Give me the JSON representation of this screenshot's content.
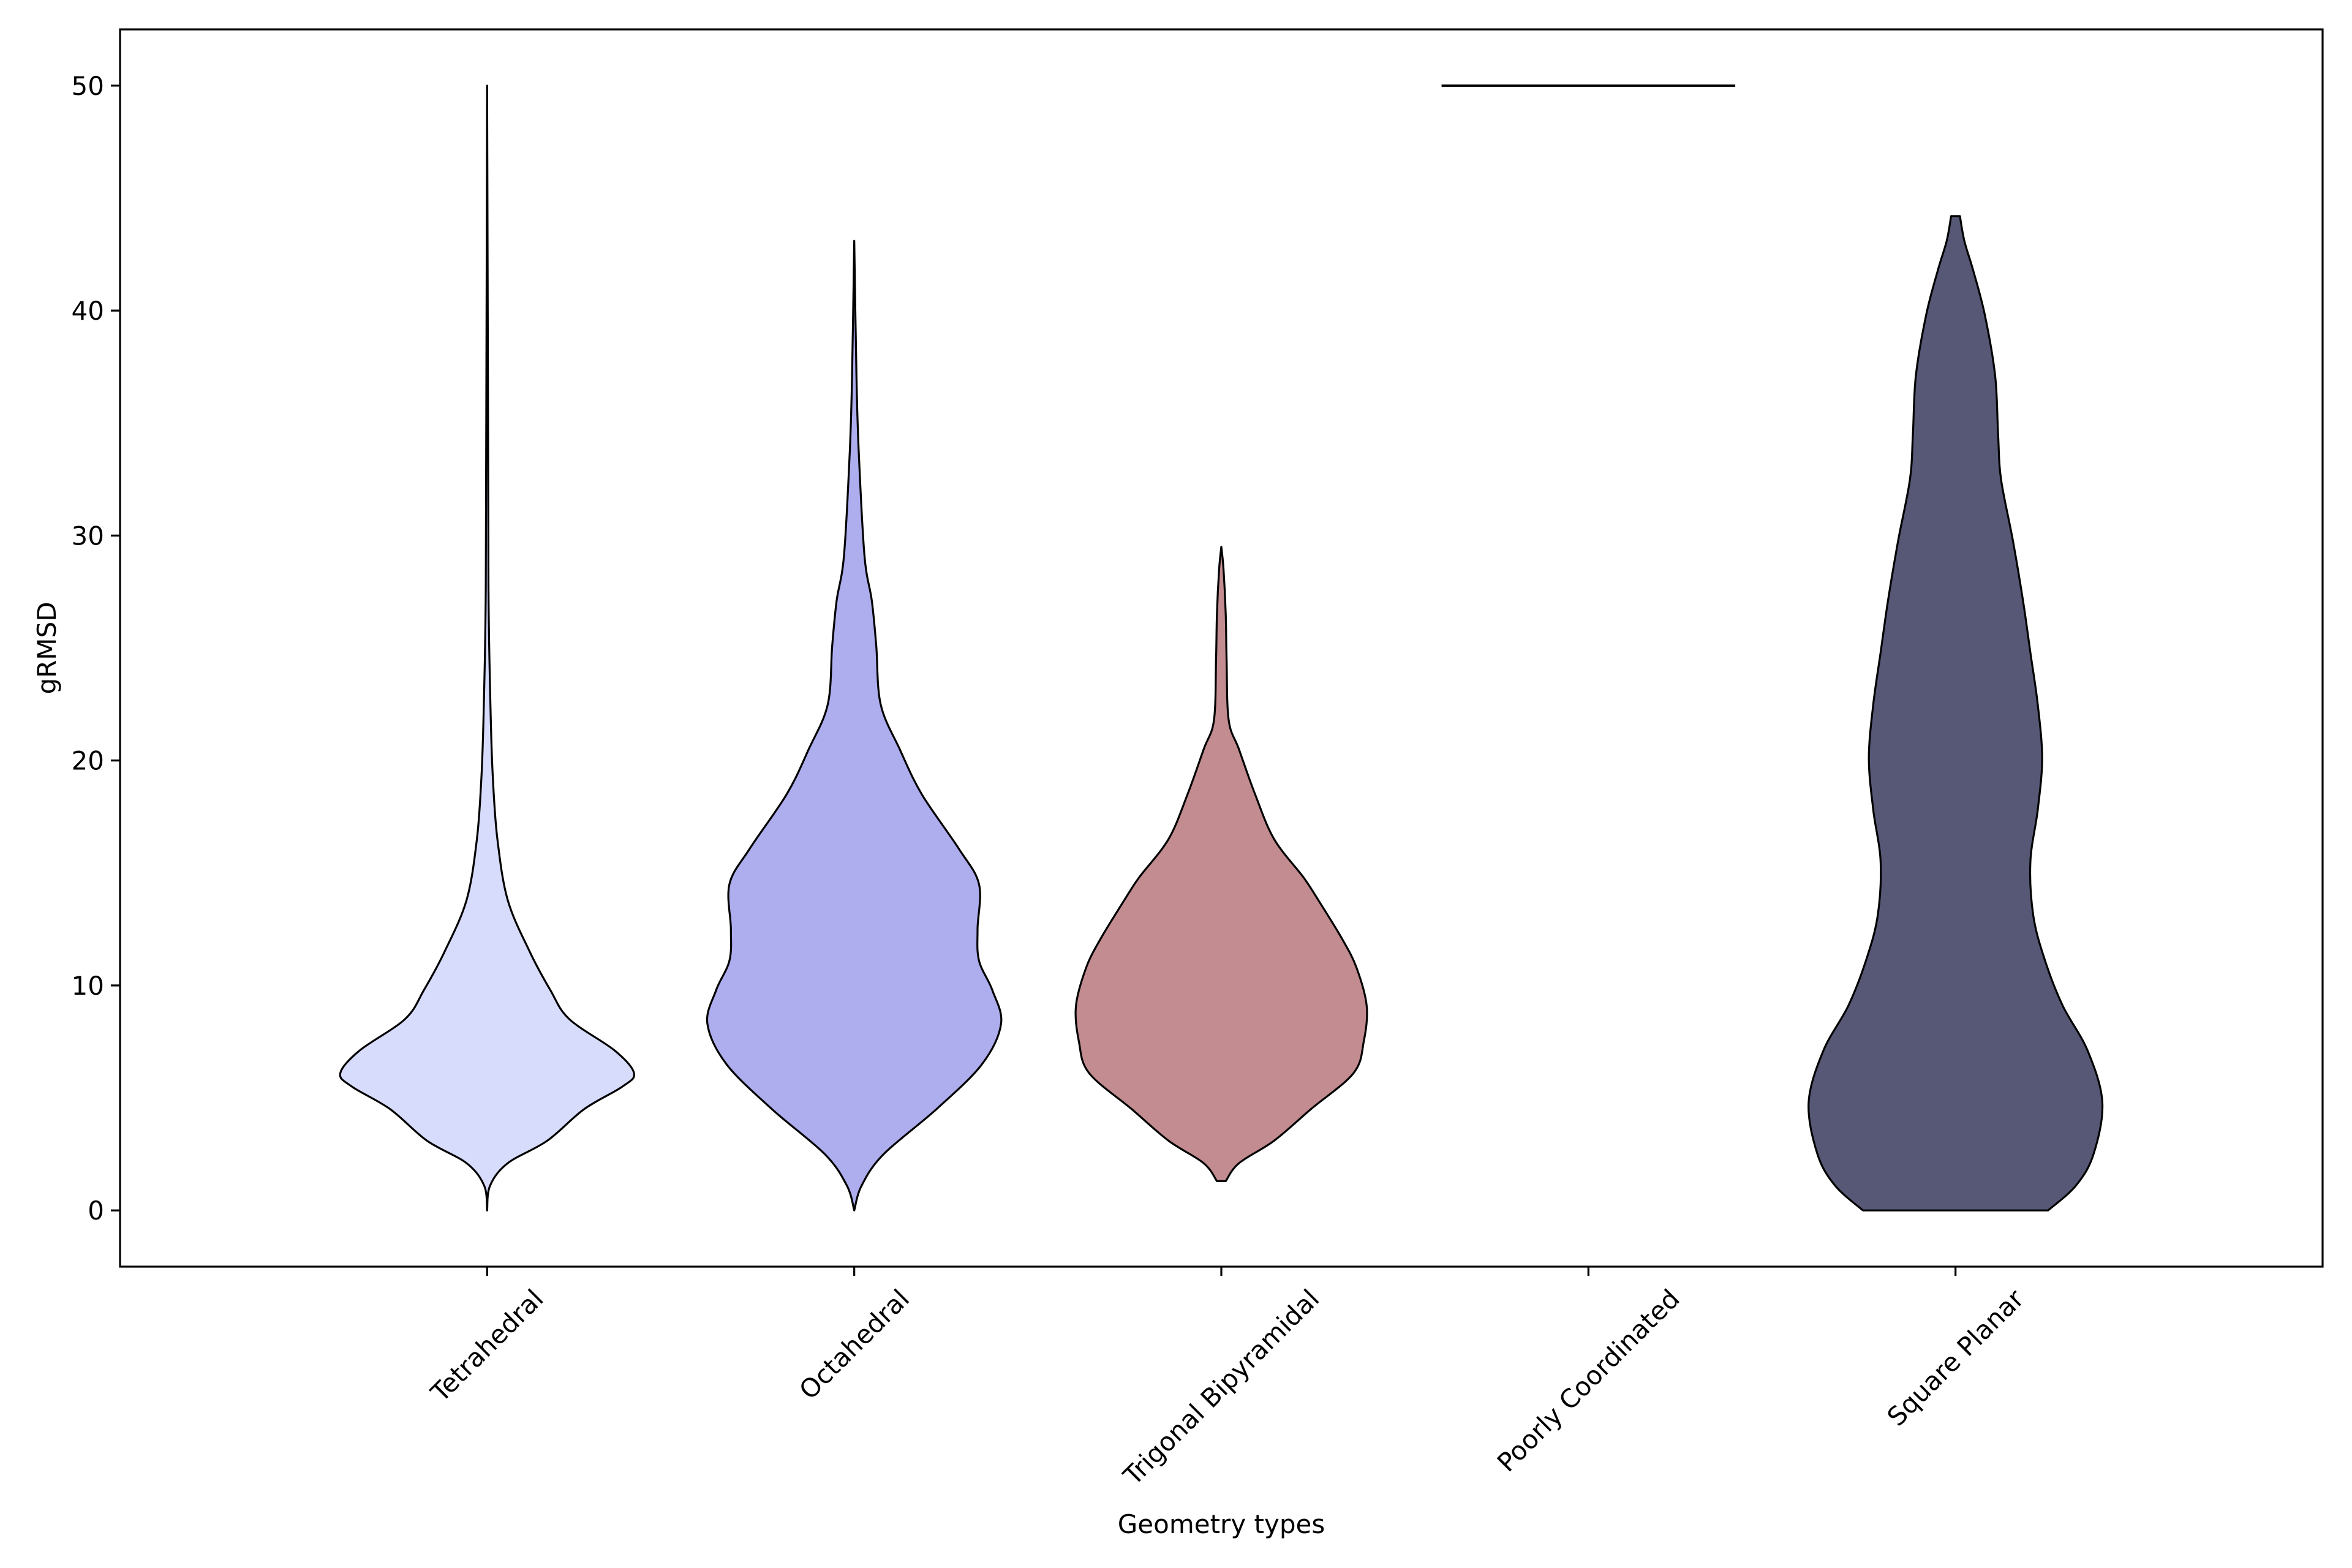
{
  "chart_data": {
    "type": "violin",
    "title": "",
    "xlabel": "Geometry types",
    "ylabel": "gRMSD",
    "ylim": [
      -2.5,
      52.5
    ],
    "xlim": [
      0,
      6
    ],
    "yticks": [
      0,
      10,
      20,
      30,
      40,
      50
    ],
    "ytick_labels": [
      "0",
      "10",
      "20",
      "30",
      "40",
      "50"
    ],
    "grid": false,
    "legend": "none",
    "categories": [
      "Tetrahedral",
      "Octahedral",
      "Trigonal Bipyramidal",
      "Poorly Coordinated",
      "Square Planar"
    ],
    "xtick_rotation_deg": 45,
    "violins": [
      {
        "name": "Tetrahedral",
        "position": 1,
        "color": "#d8dcfc",
        "min": 0,
        "max": 50,
        "density_profile": [
          [
            0,
            0
          ],
          [
            1.1,
            0.02
          ],
          [
            2.1,
            0.14
          ],
          [
            3.1,
            0.41
          ],
          [
            4.5,
            0.66
          ],
          [
            5.5,
            0.92
          ],
          [
            6.1,
            1.0
          ],
          [
            7.1,
            0.87
          ],
          [
            8.5,
            0.56
          ],
          [
            9.8,
            0.43
          ],
          [
            11.5,
            0.29
          ],
          [
            13.8,
            0.14
          ],
          [
            16.5,
            0.07
          ],
          [
            19.1,
            0.04
          ],
          [
            21.8,
            0.025
          ],
          [
            27,
            0.01
          ],
          [
            35,
            0.006
          ],
          [
            50,
            0
          ]
        ]
      },
      {
        "name": "Octahedral",
        "position": 2,
        "color": "#aeadee",
        "min": 0,
        "max": 43.1,
        "density_profile": [
          [
            0,
            0
          ],
          [
            1.1,
            0.05
          ],
          [
            2.5,
            0.2
          ],
          [
            4.5,
            0.56
          ],
          [
            6.5,
            0.87
          ],
          [
            8.3,
            1.0
          ],
          [
            9.8,
            0.94
          ],
          [
            11.1,
            0.85
          ],
          [
            12.5,
            0.84
          ],
          [
            14.5,
            0.85
          ],
          [
            16.1,
            0.71
          ],
          [
            18.5,
            0.46
          ],
          [
            20.5,
            0.31
          ],
          [
            22.5,
            0.18
          ],
          [
            25.1,
            0.15
          ],
          [
            27.1,
            0.12
          ],
          [
            29.1,
            0.07
          ],
          [
            33.8,
            0.03
          ],
          [
            37.1,
            0.015
          ],
          [
            43.1,
            0
          ]
        ]
      },
      {
        "name": "Trigonal Bipyramidal",
        "position": 3,
        "color": "#c28c91",
        "min": 1.3,
        "max": 29.5,
        "density_profile": [
          [
            1.3,
            0.03
          ],
          [
            2.1,
            0.12
          ],
          [
            3.1,
            0.36
          ],
          [
            4.5,
            0.61
          ],
          [
            6.1,
            0.9
          ],
          [
            7.5,
            0.97
          ],
          [
            9.1,
            0.99
          ],
          [
            10.8,
            0.92
          ],
          [
            12.1,
            0.82
          ],
          [
            13.8,
            0.66
          ],
          [
            14.8,
            0.56
          ],
          [
            16.5,
            0.36
          ],
          [
            18.5,
            0.23
          ],
          [
            20.5,
            0.12
          ],
          [
            21.8,
            0.05
          ],
          [
            24.5,
            0.036
          ],
          [
            26.5,
            0.03
          ],
          [
            28.5,
            0.015
          ],
          [
            29.5,
            0
          ]
        ]
      },
      {
        "name": "Poorly Coordinated",
        "position": 4,
        "color": "#000000",
        "min": 50,
        "max": 50,
        "density_profile": [
          [
            50,
            1.0
          ]
        ]
      },
      {
        "name": "Square Planar",
        "position": 5,
        "color": "#565876",
        "min": 0,
        "max": 44.2,
        "density_profile": [
          [
            0,
            0.63
          ],
          [
            1.1,
            0.82
          ],
          [
            2.5,
            0.94
          ],
          [
            4.8,
            1.0
          ],
          [
            7.1,
            0.9
          ],
          [
            9.1,
            0.73
          ],
          [
            11.1,
            0.61
          ],
          [
            13.1,
            0.53
          ],
          [
            15.5,
            0.51
          ],
          [
            17.8,
            0.56
          ],
          [
            20.1,
            0.59
          ],
          [
            22.5,
            0.56
          ],
          [
            24.8,
            0.51
          ],
          [
            27.1,
            0.46
          ],
          [
            29.8,
            0.39
          ],
          [
            32.5,
            0.31
          ],
          [
            34.5,
            0.29
          ],
          [
            37.1,
            0.27
          ],
          [
            39.8,
            0.2
          ],
          [
            41.8,
            0.12
          ],
          [
            43.1,
            0.06
          ],
          [
            44.2,
            0.03
          ]
        ]
      }
    ],
    "violin_width": 0.8
  }
}
